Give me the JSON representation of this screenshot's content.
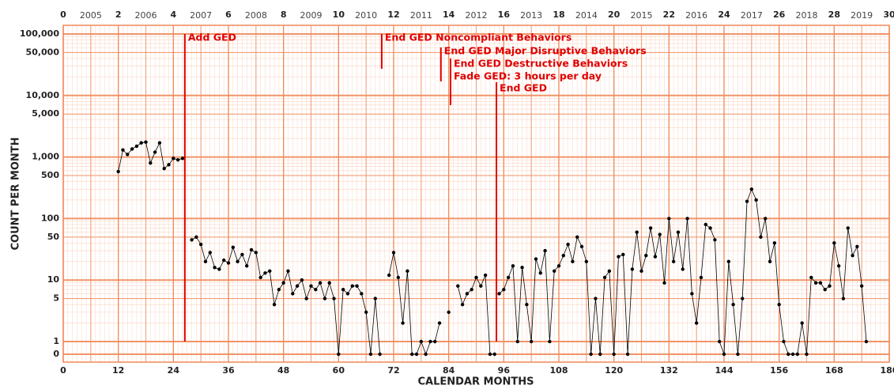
{
  "chart_data": {
    "type": "line",
    "xlabel": "CALENDAR MONTHS",
    "ylabel": "COUNT PER MONTH",
    "log_scale": true,
    "grid": true,
    "color": "#000000",
    "grid_color": "#f08a5a",
    "annotation_color": "#e00000",
    "xlim": [
      0,
      180
    ],
    "xticks": [
      0,
      12,
      24,
      36,
      48,
      60,
      72,
      84,
      96,
      108,
      120,
      132,
      144,
      156,
      168,
      180
    ],
    "x2lim": [
      0,
      30
    ],
    "x2ticks": [
      0,
      2,
      4,
      6,
      8,
      10,
      12,
      14,
      16,
      18,
      20,
      22,
      24,
      26,
      28,
      30
    ],
    "year_labels": [
      "2005",
      "2006",
      "2007",
      "2008",
      "2009",
      "2010",
      "2011",
      "2012",
      "2013",
      "2014",
      "2015",
      "2016",
      "2017",
      "2018",
      "2019"
    ],
    "ylim": [
      1,
      100000
    ],
    "yticks": [
      0,
      1,
      5,
      10,
      50,
      100,
      500,
      {
        "value": 1000,
        "label": "1,000"
      },
      {
        "value": 5000,
        "label": "5,000"
      },
      {
        "value": 10000,
        "label": "10,000"
      },
      {
        "value": 50000,
        "label": "50,000"
      },
      {
        "value": 100000,
        "label": "100,000"
      }
    ],
    "annotations": [
      {
        "x": 26.5,
        "text": "Add GED"
      },
      {
        "x": 69.4,
        "text": "End GED Noncompliant Behaviors"
      },
      {
        "x": 82.3,
        "text": "End GED Major Disruptive Behaviors"
      },
      {
        "x": 84.4,
        "text": "End GED Destructive Behaviors"
      },
      {
        "x": 84.4,
        "text": "Fade GED: 3 hours per day"
      },
      {
        "x": 94.4,
        "text": "End GED"
      }
    ],
    "x": [
      12,
      13,
      14,
      15,
      16,
      17,
      18,
      19,
      20,
      21,
      22,
      23,
      24,
      25,
      26,
      27,
      28,
      29,
      30,
      31,
      32,
      33,
      34,
      35,
      36,
      37,
      38,
      39,
      40,
      41,
      42,
      43,
      44,
      45,
      46,
      47,
      48,
      49,
      50,
      51,
      52,
      53,
      54,
      55,
      56,
      57,
      58,
      59,
      60,
      61,
      62,
      63,
      64,
      65,
      66,
      67,
      68,
      69,
      70,
      71,
      72,
      73,
      74,
      75,
      76,
      77,
      78,
      79,
      80,
      81,
      82,
      83,
      84,
      85,
      86,
      87,
      88,
      89,
      90,
      91,
      92,
      93,
      94,
      95,
      96,
      97,
      98,
      99,
      100,
      101,
      102,
      103,
      104,
      105,
      106,
      107,
      108,
      109,
      110,
      111,
      112,
      113,
      114,
      115,
      116,
      117,
      118,
      119,
      120,
      121,
      122,
      123,
      124,
      125,
      126,
      127,
      128,
      129,
      130,
      131,
      132,
      133,
      134,
      135,
      136,
      137,
      138,
      139,
      140,
      141,
      142,
      143,
      144,
      145,
      146,
      147,
      148,
      149,
      150,
      151,
      152,
      153,
      154,
      155,
      156,
      157,
      158,
      159,
      160,
      161,
      162,
      163,
      164,
      165,
      166,
      167,
      168,
      169,
      170,
      171,
      172,
      173,
      174,
      175
    ],
    "values": [
      580,
      1300,
      1100,
      1350,
      1500,
      1700,
      1750,
      800,
      1200,
      1700,
      650,
      750,
      950,
      900,
      950,
      null,
      45,
      50,
      38,
      20,
      28,
      16,
      15,
      21,
      19,
      34,
      20,
      26,
      17,
      31,
      28,
      11,
      13,
      14,
      4,
      7,
      9,
      14,
      6,
      8,
      10,
      5,
      8,
      7,
      9,
      5,
      9,
      5,
      0,
      7,
      6,
      8,
      8,
      6,
      3,
      0,
      5,
      0,
      null,
      12,
      28,
      11,
      2,
      14,
      0,
      0,
      1,
      0,
      1,
      1,
      2,
      null,
      3,
      null,
      8,
      4,
      6,
      7,
      11,
      8,
      12,
      0,
      0,
      6,
      7,
      11,
      17,
      1,
      16,
      4,
      1,
      22,
      13,
      30,
      1,
      14,
      17,
      25,
      38,
      20,
      50,
      35,
      20,
      0,
      5,
      0,
      11,
      14,
      0,
      24,
      26,
      0,
      15,
      60,
      14,
      25,
      70,
      24,
      55,
      9,
      100,
      20,
      60,
      15,
      100,
      6,
      2,
      11,
      80,
      70,
      45,
      1,
      0,
      20,
      4,
      0,
      5,
      190,
      300,
      200,
      50,
      100,
      20,
      40,
      4,
      1,
      0,
      0,
      0,
      2,
      0,
      11,
      9,
      9,
      7,
      8,
      40,
      17,
      5,
      70,
      25,
      35,
      8,
      1
    ]
  }
}
